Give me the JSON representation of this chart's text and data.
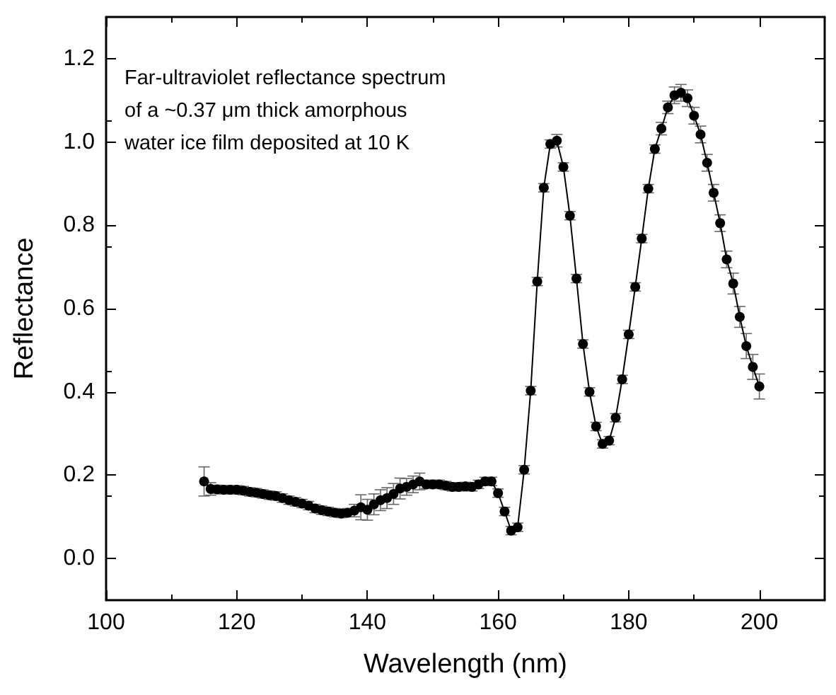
{
  "chart_data": {
    "type": "line",
    "xlabel": "Wavelength (nm)",
    "ylabel": "Reflectance",
    "annotations": [
      "Far-ultraviolet reflectance spectrum\nof a ~0.37 μm thick amorphous\nwater ice film deposited at 10 K"
    ],
    "x": [
      115,
      116,
      117,
      118,
      119,
      120,
      121,
      122,
      123,
      124,
      125,
      126,
      127,
      128,
      129,
      130,
      131,
      132,
      133,
      134,
      135,
      136,
      137,
      138,
      139,
      140,
      141,
      142,
      143,
      144,
      145,
      146,
      147,
      148,
      149,
      150,
      151,
      152,
      153,
      154,
      155,
      156,
      157,
      158,
      159,
      160,
      161,
      162,
      163,
      164,
      165,
      166,
      167,
      168,
      169,
      170,
      171,
      172,
      173,
      174,
      175,
      176,
      177,
      178,
      179,
      180,
      181,
      182,
      183,
      184,
      185,
      186,
      187,
      188,
      189,
      190,
      191,
      192,
      193,
      194,
      195,
      196,
      197,
      198,
      199,
      200
    ],
    "series": [
      {
        "color": "#000000",
        "values": [
          0.185,
          0.167,
          0.166,
          0.165,
          0.165,
          0.165,
          0.163,
          0.16,
          0.158,
          0.155,
          0.152,
          0.15,
          0.145,
          0.14,
          0.136,
          0.132,
          0.127,
          0.12,
          0.116,
          0.113,
          0.11,
          0.108,
          0.11,
          0.115,
          0.123,
          0.117,
          0.13,
          0.14,
          0.145,
          0.155,
          0.168,
          0.172,
          0.178,
          0.185,
          0.178,
          0.178,
          0.178,
          0.175,
          0.172,
          0.172,
          0.173,
          0.172,
          0.178,
          0.185,
          0.185,
          0.157,
          0.113,
          0.067,
          0.075,
          0.213,
          0.403,
          0.665,
          0.89,
          0.995,
          1.003,
          0.94,
          0.823,
          0.672,
          0.515,
          0.4,
          0.317,
          0.275,
          0.283,
          0.338,
          0.43,
          0.538,
          0.652,
          0.768,
          0.888,
          0.983,
          1.032,
          1.083,
          1.112,
          1.118,
          1.105,
          1.063,
          1.018,
          0.95,
          0.878,
          0.805,
          0.718,
          0.66,
          0.58,
          0.51,
          0.46,
          0.413
        ],
        "errors": [
          0.035,
          0.015,
          0.01,
          0.01,
          0.01,
          0.01,
          0.01,
          0.01,
          0.01,
          0.01,
          0.01,
          0.01,
          0.01,
          0.01,
          0.01,
          0.01,
          0.01,
          0.01,
          0.01,
          0.01,
          0.01,
          0.01,
          0.01,
          0.015,
          0.03,
          0.025,
          0.025,
          0.025,
          0.025,
          0.025,
          0.025,
          0.02,
          0.02,
          0.02,
          0.01,
          0.01,
          0.01,
          0.01,
          0.01,
          0.01,
          0.01,
          0.01,
          0.01,
          0.01,
          0.01,
          0.01,
          0.01,
          0.01,
          0.01,
          0.01,
          0.01,
          0.01,
          0.01,
          0.01,
          0.015,
          0.01,
          0.01,
          0.01,
          0.01,
          0.01,
          0.01,
          0.01,
          0.01,
          0.01,
          0.01,
          0.01,
          0.01,
          0.01,
          0.01,
          0.01,
          0.015,
          0.015,
          0.02,
          0.02,
          0.02,
          0.02,
          0.02,
          0.02,
          0.02,
          0.02,
          0.02,
          0.025,
          0.025,
          0.03,
          0.03,
          0.03
        ]
      }
    ],
    "xlim": [
      100,
      210
    ],
    "xticks": [
      100,
      120,
      140,
      160,
      180,
      200
    ],
    "ylim": [
      -0.1,
      1.3
    ],
    "yticks": [
      {
        "value": 0,
        "label": "0.0"
      },
      {
        "value": 0.2,
        "label": "0.2"
      },
      {
        "value": 0.4,
        "label": "0.4"
      },
      {
        "value": 0.6,
        "label": "0.6"
      },
      {
        "value": 0.8,
        "label": "0.8"
      },
      {
        "value": 1,
        "label": "1.0"
      },
      {
        "value": 1.2,
        "label": "1.2"
      }
    ],
    "marker": "circle",
    "line_style": "solid"
  }
}
